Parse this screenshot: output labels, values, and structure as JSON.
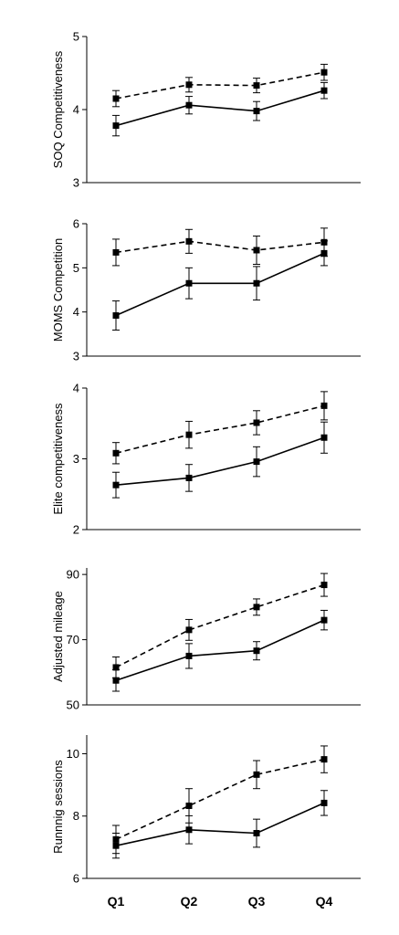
{
  "chart_data": [
    {
      "type": "line",
      "categories": [
        "Q1",
        "Q2",
        "Q3",
        "Q4"
      ],
      "ylabel": "SOQ Competitiveness",
      "ylim": [
        3,
        5
      ],
      "yticks": [
        3,
        4,
        5
      ],
      "series": [
        {
          "style": "dashed",
          "values": [
            4.15,
            4.34,
            4.33,
            4.51
          ],
          "errors": [
            0.11,
            0.1,
            0.1,
            0.11
          ]
        },
        {
          "style": "solid",
          "values": [
            3.78,
            4.06,
            3.98,
            4.26
          ],
          "errors": [
            0.14,
            0.12,
            0.13,
            0.11
          ]
        }
      ]
    },
    {
      "type": "line",
      "categories": [
        "Q1",
        "Q2",
        "Q3",
        "Q4"
      ],
      "ylabel": "MOMS Competition",
      "ylim": [
        3,
        6
      ],
      "yticks": [
        3,
        4,
        5,
        6
      ],
      "series": [
        {
          "style": "dashed",
          "values": [
            5.35,
            5.6,
            5.4,
            5.58
          ],
          "errors": [
            0.3,
            0.27,
            0.32,
            0.32
          ]
        },
        {
          "style": "solid",
          "values": [
            3.92,
            4.65,
            4.65,
            5.33
          ],
          "errors": [
            0.33,
            0.35,
            0.38,
            0.28
          ]
        }
      ]
    },
    {
      "type": "line",
      "categories": [
        "Q1",
        "Q2",
        "Q3",
        "Q4"
      ],
      "ylabel": "Elite competitiveness",
      "ylim": [
        2,
        4
      ],
      "yticks": [
        2,
        3,
        4
      ],
      "series": [
        {
          "style": "dashed",
          "values": [
            3.08,
            3.34,
            3.51,
            3.75
          ],
          "errors": [
            0.15,
            0.19,
            0.17,
            0.2
          ]
        },
        {
          "style": "solid",
          "values": [
            2.63,
            2.73,
            2.96,
            3.3
          ],
          "errors": [
            0.18,
            0.19,
            0.21,
            0.22
          ]
        }
      ]
    },
    {
      "type": "line",
      "categories": [
        "Q1",
        "Q2",
        "Q3",
        "Q4"
      ],
      "ylabel": "Adjusted mileage",
      "ylim": [
        50,
        92
      ],
      "yticks": [
        50,
        70,
        90
      ],
      "series": [
        {
          "style": "dashed",
          "values": [
            61.5,
            73.0,
            80.0,
            86.8
          ],
          "errors": [
            3.2,
            3.2,
            2.5,
            3.5
          ]
        },
        {
          "style": "solid",
          "values": [
            57.5,
            65.0,
            66.6,
            76.0
          ],
          "errors": [
            3.3,
            3.8,
            2.8,
            3.0
          ]
        }
      ]
    },
    {
      "type": "line",
      "categories": [
        "Q1",
        "Q2",
        "Q3",
        "Q4"
      ],
      "ylabel": "Runnnig sessions",
      "ylim": [
        6,
        10.6
      ],
      "yticks": [
        6,
        8,
        10
      ],
      "series": [
        {
          "style": "dashed",
          "values": [
            7.25,
            8.33,
            9.33,
            9.82
          ],
          "errors": [
            0.45,
            0.55,
            0.45,
            0.43
          ]
        },
        {
          "style": "solid",
          "values": [
            7.05,
            7.56,
            7.45,
            8.42
          ],
          "errors": [
            0.4,
            0.45,
            0.45,
            0.4
          ]
        }
      ]
    }
  ]
}
